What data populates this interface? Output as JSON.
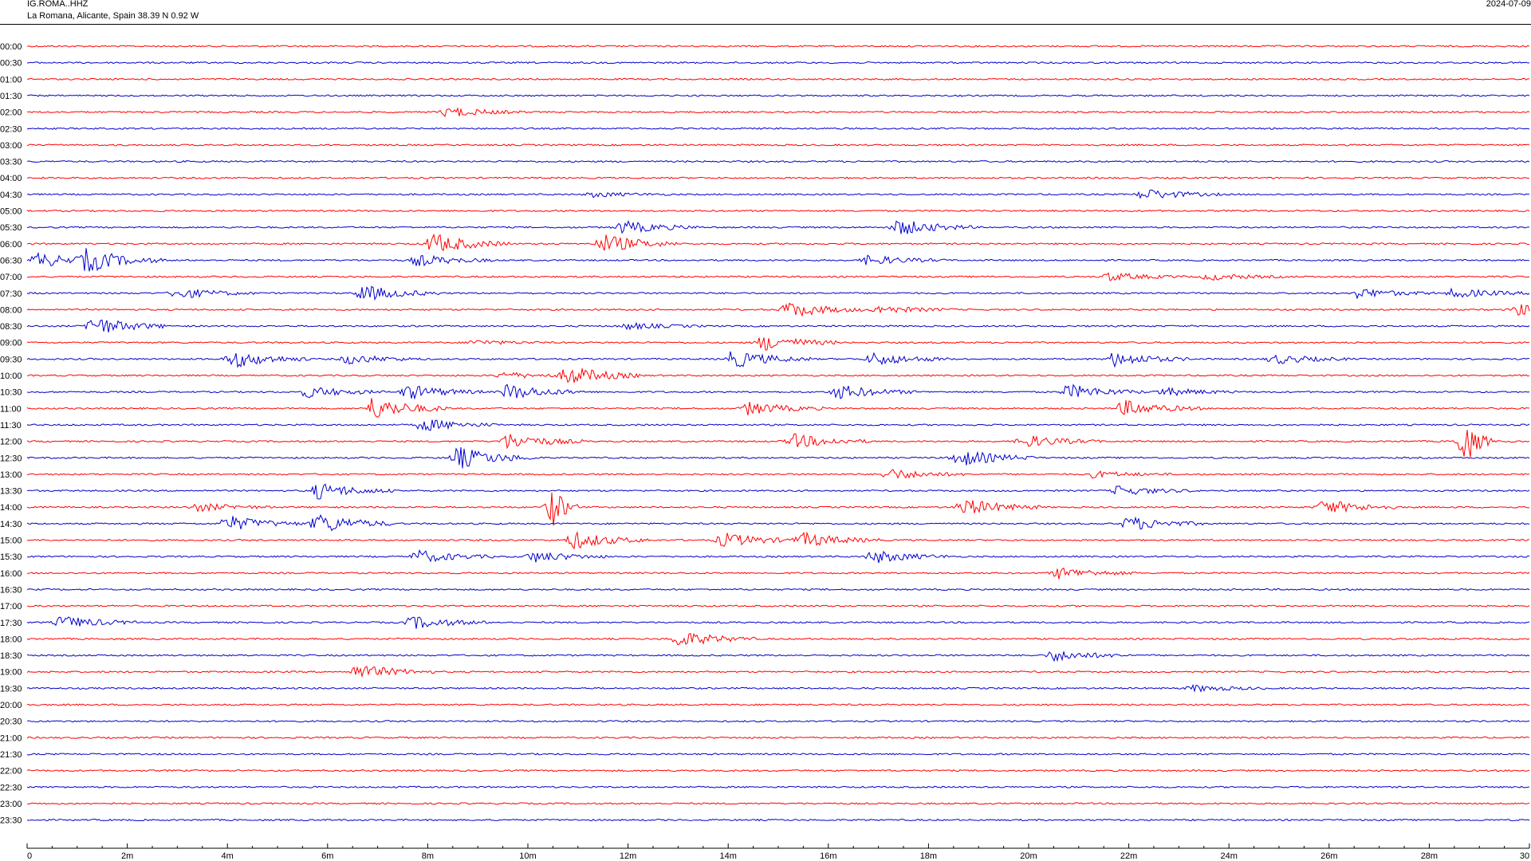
{
  "header": {
    "station": "IG.ROMA..HHZ",
    "location": "La Romana, Alicante, Spain  38.39 N 0.92 W",
    "date": "2024-07-09"
  },
  "colors": {
    "odd_rows": "#ff0000",
    "even_rows": "#0000cc",
    "axis": "#000000"
  },
  "chart_data": {
    "type": "line",
    "title": "",
    "xlabel": "",
    "ylabel": "",
    "x_range_minutes": [
      0,
      30
    ],
    "x_tick_labels": [
      "0",
      "2m",
      "4m",
      "6m",
      "8m",
      "10m",
      "12m",
      "14m",
      "16m",
      "18m",
      "20m",
      "22m",
      "24m",
      "26m",
      "28m",
      "30"
    ],
    "row_labels": [
      "00:00",
      "00:30",
      "01:00",
      "01:30",
      "02:00",
      "02:30",
      "03:00",
      "03:30",
      "04:00",
      "04:30",
      "05:00",
      "05:30",
      "06:00",
      "06:30",
      "07:00",
      "07:30",
      "08:00",
      "08:30",
      "09:00",
      "09:30",
      "10:00",
      "10:30",
      "11:00",
      "11:30",
      "12:00",
      "12:30",
      "13:00",
      "13:30",
      "14:00",
      "14:30",
      "15:00",
      "15:30",
      "16:00",
      "16:30",
      "17:00",
      "17:30",
      "18:00",
      "18:30",
      "19:00",
      "19:30",
      "20:00",
      "20:30",
      "21:00",
      "21:30",
      "22:00",
      "22:30",
      "23:00",
      "23:30"
    ],
    "row_colors_pattern": [
      "red",
      "blue"
    ],
    "events": [
      {
        "row": 4,
        "minute": 8.4,
        "amp": 6
      },
      {
        "row": 9,
        "minute": 11.3,
        "amp": 3
      },
      {
        "row": 9,
        "minute": 22.3,
        "amp": 7
      },
      {
        "row": 11,
        "minute": 11.9,
        "amp": 8
      },
      {
        "row": 11,
        "minute": 17.4,
        "amp": 10
      },
      {
        "row": 12,
        "minute": 8.1,
        "amp": 13
      },
      {
        "row": 12,
        "minute": 11.5,
        "amp": 12
      },
      {
        "row": 13,
        "minute": 0.2,
        "amp": 9
      },
      {
        "row": 13,
        "minute": 1.2,
        "amp": 13
      },
      {
        "row": 13,
        "minute": 7.8,
        "amp": 7
      },
      {
        "row": 13,
        "minute": 16.8,
        "amp": 6
      },
      {
        "row": 14,
        "minute": 21.6,
        "amp": 5
      },
      {
        "row": 14,
        "minute": 23.6,
        "amp": 4
      },
      {
        "row": 15,
        "minute": 3.0,
        "amp": 7
      },
      {
        "row": 15,
        "minute": 6.7,
        "amp": 10
      },
      {
        "row": 15,
        "minute": 26.6,
        "amp": 6
      },
      {
        "row": 15,
        "minute": 28.5,
        "amp": 6
      },
      {
        "row": 16,
        "minute": 15.2,
        "amp": 10
      },
      {
        "row": 16,
        "minute": 17.0,
        "amp": 5
      },
      {
        "row": 16,
        "minute": 29.8,
        "amp": 7
      },
      {
        "row": 17,
        "minute": 1.3,
        "amp": 12
      },
      {
        "row": 17,
        "minute": 12.0,
        "amp": 4
      },
      {
        "row": 18,
        "minute": 8.9,
        "amp": 3
      },
      {
        "row": 18,
        "minute": 14.7,
        "amp": 10
      },
      {
        "row": 19,
        "minute": 4.1,
        "amp": 11
      },
      {
        "row": 19,
        "minute": 6.4,
        "amp": 6
      },
      {
        "row": 19,
        "minute": 14.1,
        "amp": 11
      },
      {
        "row": 19,
        "minute": 16.9,
        "amp": 8
      },
      {
        "row": 19,
        "minute": 21.7,
        "amp": 9
      },
      {
        "row": 19,
        "minute": 24.9,
        "amp": 6
      },
      {
        "row": 20,
        "minute": 9.5,
        "amp": 4
      },
      {
        "row": 20,
        "minute": 10.8,
        "amp": 12
      },
      {
        "row": 21,
        "minute": 5.6,
        "amp": 7
      },
      {
        "row": 21,
        "minute": 7.6,
        "amp": 9
      },
      {
        "row": 21,
        "minute": 9.6,
        "amp": 10
      },
      {
        "row": 21,
        "minute": 16.2,
        "amp": 9
      },
      {
        "row": 21,
        "minute": 20.8,
        "amp": 9
      },
      {
        "row": 21,
        "minute": 22.7,
        "amp": 5
      },
      {
        "row": 22,
        "minute": 6.9,
        "amp": 14
      },
      {
        "row": 22,
        "minute": 14.4,
        "amp": 8
      },
      {
        "row": 22,
        "minute": 21.9,
        "amp": 10
      },
      {
        "row": 23,
        "minute": 7.9,
        "amp": 8
      },
      {
        "row": 24,
        "minute": 9.6,
        "amp": 10
      },
      {
        "row": 24,
        "minute": 15.3,
        "amp": 9
      },
      {
        "row": 24,
        "minute": 19.9,
        "amp": 8
      },
      {
        "row": 24,
        "minute": 28.7,
        "amp": 30
      },
      {
        "row": 25,
        "minute": 8.6,
        "amp": 14
      },
      {
        "row": 25,
        "minute": 18.6,
        "amp": 11
      },
      {
        "row": 26,
        "minute": 17.2,
        "amp": 7
      },
      {
        "row": 26,
        "minute": 21.3,
        "amp": 4
      },
      {
        "row": 27,
        "minute": 5.8,
        "amp": 10
      },
      {
        "row": 27,
        "minute": 21.8,
        "amp": 6
      },
      {
        "row": 28,
        "minute": 3.4,
        "amp": 5
      },
      {
        "row": 28,
        "minute": 10.5,
        "amp": 24
      },
      {
        "row": 28,
        "minute": 18.7,
        "amp": 11
      },
      {
        "row": 28,
        "minute": 25.9,
        "amp": 9
      },
      {
        "row": 29,
        "minute": 4.0,
        "amp": 10
      },
      {
        "row": 29,
        "minute": 5.8,
        "amp": 13
      },
      {
        "row": 29,
        "minute": 22.0,
        "amp": 9
      },
      {
        "row": 30,
        "minute": 10.9,
        "amp": 11
      },
      {
        "row": 30,
        "minute": 13.9,
        "amp": 9
      },
      {
        "row": 30,
        "minute": 15.5,
        "amp": 9
      },
      {
        "row": 31,
        "minute": 7.8,
        "amp": 8
      },
      {
        "row": 31,
        "minute": 10.1,
        "amp": 7
      },
      {
        "row": 31,
        "minute": 16.9,
        "amp": 8
      },
      {
        "row": 32,
        "minute": 20.6,
        "amp": 7
      },
      {
        "row": 35,
        "minute": 0.7,
        "amp": 8
      },
      {
        "row": 35,
        "minute": 7.7,
        "amp": 8
      },
      {
        "row": 36,
        "minute": 13.0,
        "amp": 10
      },
      {
        "row": 37,
        "minute": 20.5,
        "amp": 7
      },
      {
        "row": 38,
        "minute": 6.6,
        "amp": 9
      },
      {
        "row": 39,
        "minute": 23.3,
        "amp": 4
      }
    ]
  }
}
